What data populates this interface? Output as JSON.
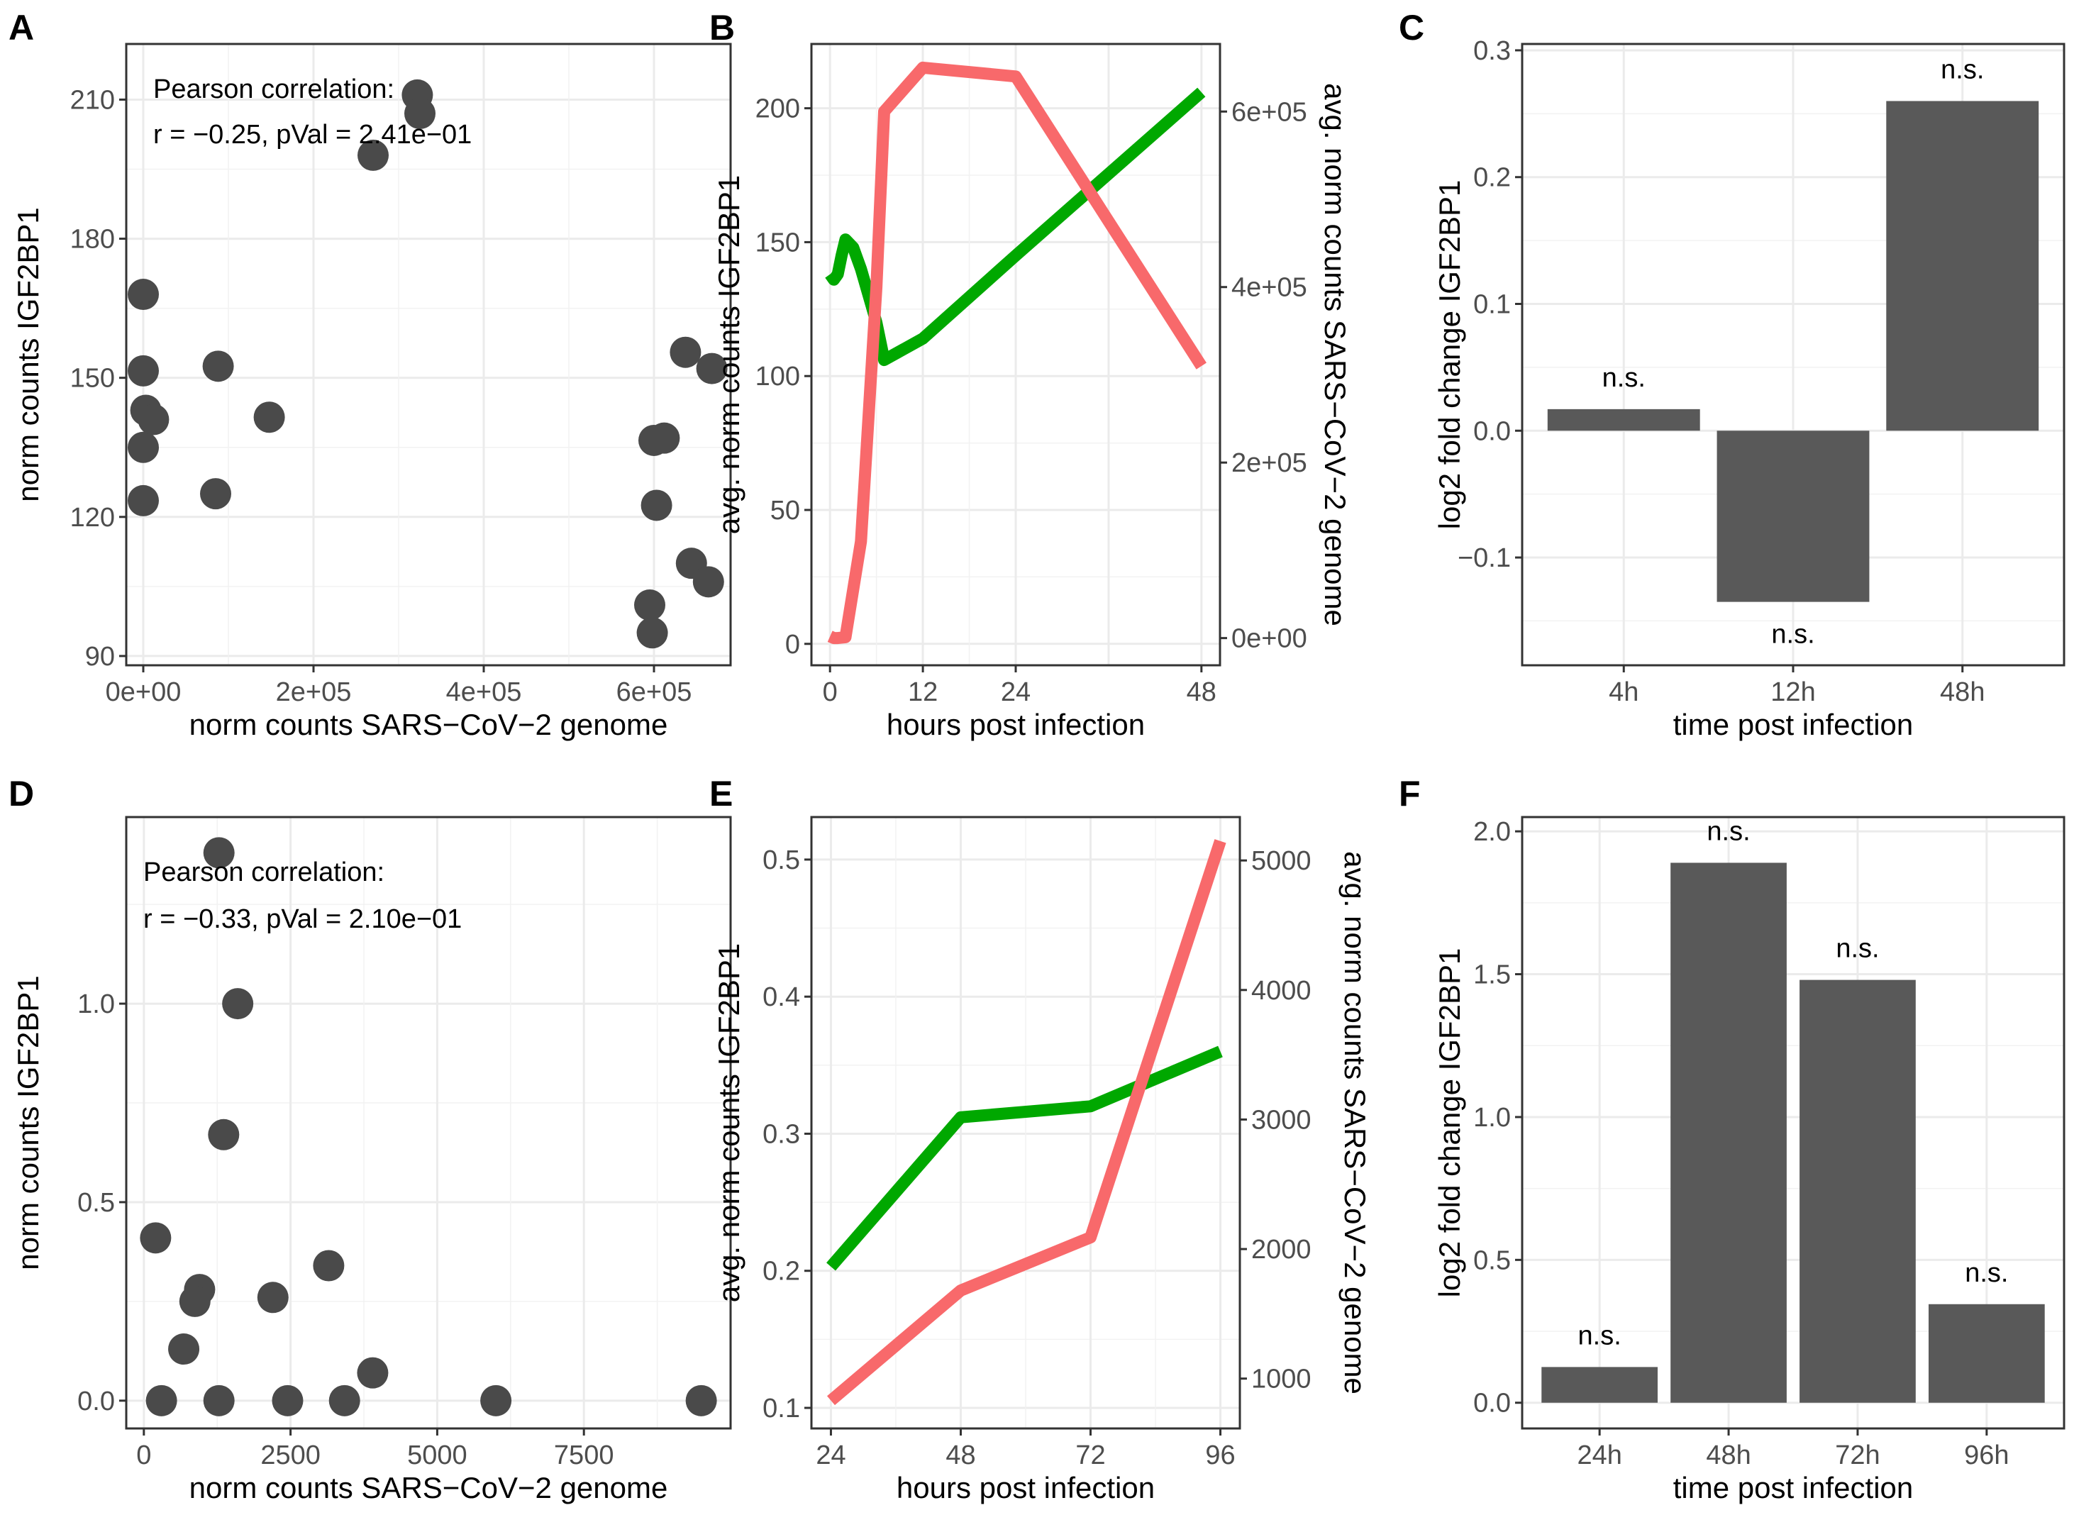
{
  "colors": {
    "green": "#00a800",
    "red": "#f8696b",
    "point": "#4a4a4a",
    "bar": "#595959"
  },
  "chart_data": [
    {
      "id": "A",
      "type": "scatter",
      "panel": "A",
      "xlabel": "norm counts SARS−CoV−2 genome",
      "ylabel": "norm counts IGF2BP1",
      "xlim": [
        -20000,
        690000
      ],
      "ylim": [
        88,
        222
      ],
      "xticks": [
        0,
        200000,
        400000,
        600000
      ],
      "xtick_labels": [
        "0e+00",
        "2e+05",
        "4e+05",
        "6e+05"
      ],
      "yticks": [
        90,
        120,
        150,
        180,
        210
      ],
      "ytick_labels": [
        "90",
        "120",
        "150",
        "180",
        "210"
      ],
      "annotation_line1": "Pearson correlation:",
      "annotation_line2": "r = −0.25, pVal = 2.41e−01",
      "points": [
        [
          0,
          168
        ],
        [
          0,
          151.5
        ],
        [
          0,
          135
        ],
        [
          0,
          123.5
        ],
        [
          3000,
          143
        ],
        [
          12000,
          141
        ],
        [
          88000,
          152.5
        ],
        [
          85000,
          125
        ],
        [
          148000,
          141.5
        ],
        [
          270000,
          198
        ],
        [
          322000,
          211
        ],
        [
          325000,
          207
        ],
        [
          600000,
          136.5
        ],
        [
          612000,
          137
        ],
        [
          603000,
          122.5
        ],
        [
          637000,
          155.5
        ],
        [
          668000,
          152
        ],
        [
          644000,
          110
        ],
        [
          664000,
          106
        ],
        [
          595000,
          101
        ],
        [
          598000,
          95
        ]
      ]
    },
    {
      "id": "B",
      "type": "line",
      "panel": "B",
      "xlabel": "hours post infection",
      "ylabel": "avg. norm counts IGF2BP1",
      "ylabel2": "avg. norm counts SARS−CoV−2 genome",
      "xlim": [
        -2.4,
        50.4
      ],
      "ylim": [
        -8,
        224
      ],
      "ylim2": [
        -31000,
        677000
      ],
      "xticks": [
        0,
        12,
        24,
        48
      ],
      "xtick_labels": [
        "0",
        "12",
        "24",
        "48"
      ],
      "yticks": [
        0,
        50,
        100,
        150,
        200
      ],
      "ytick_labels": [
        "0",
        "50",
        "100",
        "150",
        "200"
      ],
      "yticks2": [
        0,
        200000,
        400000,
        600000
      ],
      "ytick2_labels": [
        "0e+00",
        "2e+05",
        "4e+05",
        "6e+05"
      ],
      "series": [
        {
          "name": "IGF2BP1",
          "axis": "left",
          "color": "green",
          "x": [
            0,
            0.5,
            1,
            1.5,
            2,
            3,
            4,
            6,
            7,
            12,
            24,
            48
          ],
          "y": [
            138,
            136,
            138,
            145,
            151,
            148,
            140,
            120,
            106,
            114,
            145,
            206
          ]
        },
        {
          "name": "SARS-CoV-2",
          "axis": "right",
          "color": "red",
          "x": [
            0,
            0.5,
            1,
            2,
            4,
            6,
            7,
            12,
            24,
            48
          ],
          "y": [
            2000,
            0,
            0,
            1000,
            110000,
            400000,
            600000,
            650000,
            640000,
            310000
          ]
        }
      ]
    },
    {
      "id": "C",
      "type": "bar",
      "panel": "C",
      "xlabel": "time post infection",
      "ylabel": "log2 fold change IGF2BP1",
      "ylim": [
        -0.185,
        0.305
      ],
      "yticks": [
        -0.1,
        0,
        0.1,
        0.2,
        0.3
      ],
      "ytick_labels": [
        "−0.1",
        "0.0",
        "0.1",
        "0.2",
        "0.3"
      ],
      "categories": [
        "4h",
        "12h",
        "48h"
      ],
      "values": [
        0.017,
        -0.135,
        0.26
      ],
      "labels": [
        "n.s.",
        "n.s.",
        "n.s."
      ]
    },
    {
      "id": "D",
      "type": "scatter",
      "panel": "D",
      "xlabel": "norm counts SARS−CoV−2 genome",
      "ylabel": "norm counts IGF2BP1",
      "xlim": [
        -300,
        10000
      ],
      "ylim": [
        -0.07,
        1.47
      ],
      "xticks": [
        0,
        2500,
        5000,
        7500
      ],
      "xtick_labels": [
        "0",
        "2500",
        "5000",
        "7500"
      ],
      "yticks": [
        0,
        0.5,
        1.0
      ],
      "ytick_labels": [
        "0.0",
        "0.5",
        "1.0"
      ],
      "annotation_line1": "Pearson correlation:",
      "annotation_line2": "r = −0.33, pVal = 2.10e−01",
      "points": [
        [
          1280,
          1.38
        ],
        [
          1600,
          1.0
        ],
        [
          1360,
          0.67
        ],
        [
          200,
          0.41
        ],
        [
          950,
          0.28
        ],
        [
          870,
          0.25
        ],
        [
          680,
          0.13
        ],
        [
          2200,
          0.26
        ],
        [
          3150,
          0.34
        ],
        [
          3900,
          0.07
        ],
        [
          300,
          0
        ],
        [
          1280,
          0
        ],
        [
          2450,
          0
        ],
        [
          3420,
          0
        ],
        [
          6000,
          0
        ],
        [
          9500,
          0
        ]
      ]
    },
    {
      "id": "E",
      "type": "line",
      "panel": "E",
      "xlabel": "hours post infection",
      "ylabel": "avg. norm counts IGF2BP1",
      "ylabel2": "avg. norm counts SARS−CoV−2 genome",
      "xlim": [
        20.4,
        99.6
      ],
      "ylim": [
        0.085,
        0.531
      ],
      "ylim2": [
        615,
        5335
      ],
      "xticks": [
        24,
        48,
        72,
        96
      ],
      "xtick_labels": [
        "24",
        "48",
        "72",
        "96"
      ],
      "yticks": [
        0.1,
        0.2,
        0.3,
        0.4,
        0.5
      ],
      "ytick_labels": [
        "0.1",
        "0.2",
        "0.3",
        "0.4",
        "0.5"
      ],
      "yticks2": [
        1000,
        2000,
        3000,
        4000,
        5000
      ],
      "ytick2_labels": [
        "1000",
        "2000",
        "3000",
        "4000",
        "5000"
      ],
      "series": [
        {
          "name": "IGF2BP1",
          "axis": "left",
          "color": "green",
          "x": [
            24,
            48,
            72,
            96
          ],
          "y": [
            0.203,
            0.312,
            0.32,
            0.36
          ]
        },
        {
          "name": "SARS-CoV-2",
          "axis": "right",
          "color": "red",
          "x": [
            24,
            48,
            72,
            96
          ],
          "y": [
            830,
            1680,
            2090,
            5150
          ]
        }
      ]
    },
    {
      "id": "F",
      "type": "bar",
      "panel": "F",
      "xlabel": "time post infection",
      "ylabel": "log2 fold change IGF2BP1",
      "ylim": [
        -0.09,
        2.05
      ],
      "yticks": [
        0,
        0.5,
        1.0,
        1.5,
        2.0
      ],
      "ytick_labels": [
        "0.0",
        "0.5",
        "1.0",
        "1.5",
        "2.0"
      ],
      "categories": [
        "24h",
        "48h",
        "72h",
        "96h"
      ],
      "values": [
        0.125,
        1.89,
        1.48,
        0.345
      ],
      "labels": [
        "n.s.",
        "n.s.",
        "n.s.",
        "n.s."
      ]
    }
  ]
}
